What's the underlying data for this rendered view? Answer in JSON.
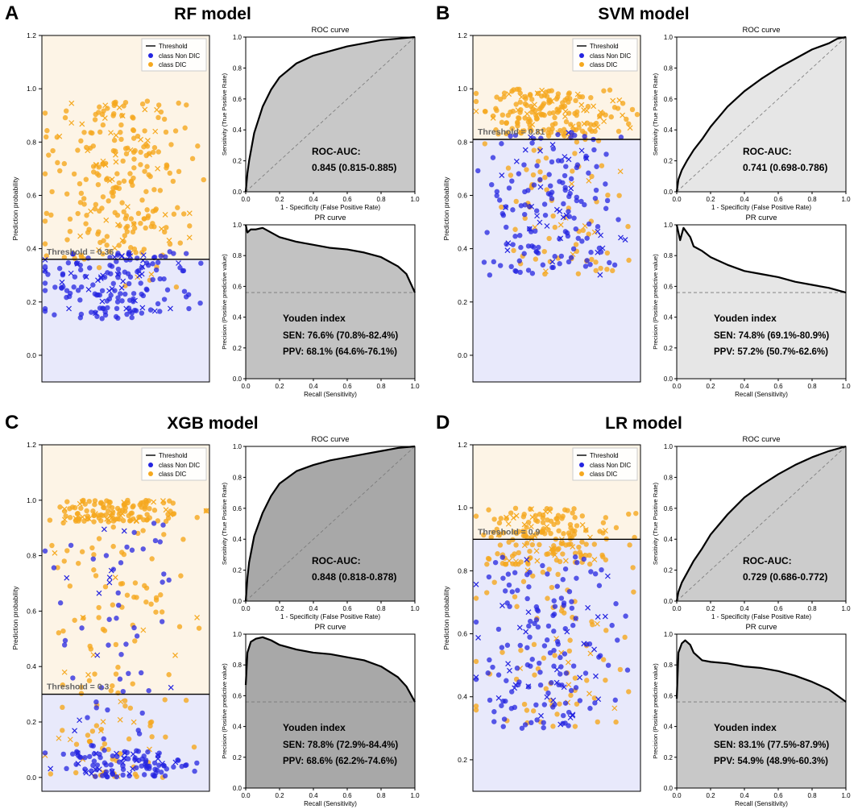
{
  "colors": {
    "dic": "#f5a81e",
    "non_dic": "#2424e0",
    "above_bg": "#fdf4e6",
    "below_bg": "#e8e9fb",
    "threshold_line": "#000000",
    "threshold_label": "#666666"
  },
  "chart_data": [
    {
      "type": "scatter",
      "panel": "A",
      "title": "RF model",
      "scatter": {
        "ylabel": "Prediction probability",
        "ylim": [
          -0.1,
          1.2
        ],
        "yticks": [
          "0.0",
          "0.2",
          "0.4",
          "0.6",
          "0.8",
          "1.0",
          "1.2"
        ],
        "threshold": 0.36,
        "threshold_label": "Threshold = 0.36",
        "legend": [
          "Threshold",
          "class Non DIC",
          "class DIC"
        ],
        "legend_position": "top-right",
        "dic_range": [
          0.25,
          0.96
        ],
        "nondic_range": [
          0.12,
          0.62
        ]
      },
      "roc": {
        "title": "ROC curve",
        "xlabel": "1 - Specificity (False Positive Rate)",
        "ylabel": "Sensitivity (True Positive Rate)",
        "ticks": [
          "0.0",
          "0.2",
          "0.4",
          "0.6",
          "0.8",
          "1.0"
        ],
        "auc_label": "ROC-AUC:",
        "auc_text": "0.845 (0.815-0.885)",
        "auc": 0.845,
        "fill": "#c8c8c8",
        "curve": [
          [
            0,
            0
          ],
          [
            0.01,
            0.12
          ],
          [
            0.02,
            0.2
          ],
          [
            0.05,
            0.38
          ],
          [
            0.1,
            0.55
          ],
          [
            0.15,
            0.66
          ],
          [
            0.2,
            0.74
          ],
          [
            0.3,
            0.83
          ],
          [
            0.4,
            0.88
          ],
          [
            0.5,
            0.91
          ],
          [
            0.6,
            0.94
          ],
          [
            0.7,
            0.96
          ],
          [
            0.8,
            0.98
          ],
          [
            0.9,
            0.99
          ],
          [
            1,
            1
          ]
        ]
      },
      "pr": {
        "title": "PR curve",
        "xlabel": "Recall (Sensitivity)",
        "ylabel": "Precision (Positive predictive value)",
        "ticks": [
          "0.0",
          "0.2",
          "0.4",
          "0.6",
          "0.8",
          "1.0"
        ],
        "baseline": 0.56,
        "youden_title": "Youden index",
        "sen_text": "SEN: 76.6% (70.8%-82.4%)",
        "ppv_text": "PPV: 68.1% (64.6%-76.1%)",
        "fill": "#c2c2c2",
        "curve": [
          [
            0,
            1.0
          ],
          [
            0.01,
            0.95
          ],
          [
            0.03,
            0.97
          ],
          [
            0.06,
            0.97
          ],
          [
            0.1,
            0.98
          ],
          [
            0.15,
            0.95
          ],
          [
            0.2,
            0.92
          ],
          [
            0.3,
            0.89
          ],
          [
            0.4,
            0.87
          ],
          [
            0.5,
            0.85
          ],
          [
            0.6,
            0.84
          ],
          [
            0.7,
            0.82
          ],
          [
            0.8,
            0.79
          ],
          [
            0.9,
            0.73
          ],
          [
            0.95,
            0.68
          ],
          [
            1,
            0.56
          ]
        ]
      }
    },
    {
      "type": "scatter",
      "panel": "B",
      "title": "SVM model",
      "scatter": {
        "ylabel": "Prediction probability",
        "ylim": [
          -0.1,
          1.2
        ],
        "yticks": [
          "0.0",
          "0.2",
          "0.4",
          "0.6",
          "0.8",
          "1.0",
          "1.2"
        ],
        "threshold": 0.81,
        "threshold_label": "Threshold = 0.81",
        "legend": [
          "Threshold",
          "class Non DIC",
          "class DIC"
        ],
        "legend_position": "top-right",
        "dic_range": [
          0.3,
          1.0
        ],
        "nondic_range": [
          0.15,
          0.98
        ]
      },
      "roc": {
        "title": "ROC curve",
        "xlabel": "1 - Specificity (False Positive Rate)",
        "ylabel": "Sensitivity (True Positive Rate)",
        "ticks": [
          "0.0",
          "0.2",
          "0.4",
          "0.6",
          "0.8",
          "1.0"
        ],
        "auc_label": "ROC-AUC:",
        "auc_text": "0.741 (0.698-0.786)",
        "auc": 0.741,
        "fill": "#e6e6e6",
        "curve": [
          [
            0,
            0
          ],
          [
            0.01,
            0.08
          ],
          [
            0.03,
            0.14
          ],
          [
            0.06,
            0.2
          ],
          [
            0.1,
            0.27
          ],
          [
            0.15,
            0.34
          ],
          [
            0.2,
            0.42
          ],
          [
            0.3,
            0.55
          ],
          [
            0.4,
            0.65
          ],
          [
            0.5,
            0.73
          ],
          [
            0.6,
            0.8
          ],
          [
            0.7,
            0.86
          ],
          [
            0.8,
            0.92
          ],
          [
            0.9,
            0.96
          ],
          [
            0.95,
            0.99
          ],
          [
            1,
            1
          ]
        ]
      },
      "pr": {
        "title": "PR curve",
        "xlabel": "Recall (Sensitivity)",
        "ylabel": "Precision (Positive predictive value)",
        "ticks": [
          "0.0",
          "0.2",
          "0.4",
          "0.6",
          "0.8",
          "1.0"
        ],
        "baseline": 0.56,
        "youden_title": "Youden index",
        "sen_text": "SEN: 74.8% (69.1%-80.9%)",
        "ppv_text": "PPV: 57.2% (50.7%-62.6%)",
        "fill": "#e6e6e6",
        "curve": [
          [
            0,
            1.0
          ],
          [
            0.02,
            0.9
          ],
          [
            0.04,
            0.98
          ],
          [
            0.06,
            0.95
          ],
          [
            0.08,
            0.92
          ],
          [
            0.1,
            0.86
          ],
          [
            0.15,
            0.83
          ],
          [
            0.2,
            0.79
          ],
          [
            0.3,
            0.74
          ],
          [
            0.4,
            0.7
          ],
          [
            0.5,
            0.68
          ],
          [
            0.6,
            0.66
          ],
          [
            0.7,
            0.63
          ],
          [
            0.8,
            0.61
          ],
          [
            0.9,
            0.59
          ],
          [
            1,
            0.56
          ]
        ]
      }
    },
    {
      "type": "scatter",
      "panel": "C",
      "title": "XGB model",
      "scatter": {
        "ylabel": "Prediction probability",
        "ylim": [
          -0.05,
          1.2
        ],
        "yticks": [
          "0.0",
          "0.2",
          "0.4",
          "0.6",
          "0.8",
          "1.0",
          "1.2"
        ],
        "threshold": 0.3,
        "threshold_label": "Threshold = 0.3",
        "legend": [
          "Threshold",
          "class Non DIC",
          "class DIC"
        ],
        "legend_position": "top-right",
        "dic_range": [
          0.0,
          1.0
        ],
        "nondic_range": [
          0.0,
          1.0
        ]
      },
      "roc": {
        "title": "ROC curve",
        "xlabel": "1 - Specificity (False Positive Rate)",
        "ylabel": "Sensitivity (True Positive Rate)",
        "ticks": [
          "0.0",
          "0.2",
          "0.4",
          "0.6",
          "0.8",
          "1.0"
        ],
        "auc_label": "ROC-AUC:",
        "auc_text": "0.848 (0.818-0.878)",
        "auc": 0.848,
        "fill": "#a8a8a8",
        "curve": [
          [
            0,
            0
          ],
          [
            0.01,
            0.15
          ],
          [
            0.02,
            0.25
          ],
          [
            0.05,
            0.42
          ],
          [
            0.1,
            0.57
          ],
          [
            0.15,
            0.68
          ],
          [
            0.2,
            0.76
          ],
          [
            0.3,
            0.84
          ],
          [
            0.4,
            0.88
          ],
          [
            0.5,
            0.91
          ],
          [
            0.6,
            0.93
          ],
          [
            0.7,
            0.95
          ],
          [
            0.8,
            0.97
          ],
          [
            0.9,
            0.99
          ],
          [
            1,
            1
          ]
        ]
      },
      "pr": {
        "title": "PR curve",
        "xlabel": "Recall (Sensitivity)",
        "ylabel": "Precision (Positive predictive value)",
        "ticks": [
          "0.0",
          "0.2",
          "0.4",
          "0.6",
          "0.8",
          "1.0"
        ],
        "baseline": 0.56,
        "youden_title": "Youden index",
        "sen_text": "SEN: 78.8% (72.9%-84.4%)",
        "ppv_text": "PPV: 68.6% (62.2%-74.6%)",
        "fill": "#a8a8a8",
        "curve": [
          [
            0,
            0.67
          ],
          [
            0.01,
            0.88
          ],
          [
            0.03,
            0.95
          ],
          [
            0.06,
            0.97
          ],
          [
            0.1,
            0.98
          ],
          [
            0.15,
            0.96
          ],
          [
            0.2,
            0.93
          ],
          [
            0.3,
            0.9
          ],
          [
            0.4,
            0.88
          ],
          [
            0.5,
            0.87
          ],
          [
            0.6,
            0.85
          ],
          [
            0.7,
            0.83
          ],
          [
            0.8,
            0.79
          ],
          [
            0.9,
            0.72
          ],
          [
            0.95,
            0.66
          ],
          [
            1,
            0.56
          ]
        ]
      }
    },
    {
      "type": "scatter",
      "panel": "D",
      "title": "LR model",
      "scatter": {
        "ylabel": "Prediction probability",
        "ylim": [
          0.1,
          1.2
        ],
        "yticks": [
          "0.2",
          "0.4",
          "0.6",
          "0.8",
          "1.0",
          "1.2"
        ],
        "threshold": 0.9,
        "threshold_label": "Threshold = 0.9",
        "legend": [
          "Threshold",
          "class Non DIC",
          "class DIC"
        ],
        "legend_position": "top-right",
        "dic_range": [
          0.3,
          1.0
        ],
        "nondic_range": [
          0.2,
          0.98
        ]
      },
      "roc": {
        "title": "ROC curve",
        "xlabel": "1 - Specificity (False Positive Rate)",
        "ylabel": "Sensitivity (True Positive Rate)",
        "ticks": [
          "0.0",
          "0.2",
          "0.4",
          "0.6",
          "0.8",
          "1.0"
        ],
        "auc_label": "ROC-AUC:",
        "auc_text": "0.729 (0.686-0.772)",
        "auc": 0.729,
        "fill": "#cccccc",
        "curve": [
          [
            0,
            0
          ],
          [
            0.01,
            0.06
          ],
          [
            0.03,
            0.12
          ],
          [
            0.06,
            0.18
          ],
          [
            0.1,
            0.26
          ],
          [
            0.15,
            0.34
          ],
          [
            0.2,
            0.43
          ],
          [
            0.3,
            0.56
          ],
          [
            0.4,
            0.67
          ],
          [
            0.5,
            0.75
          ],
          [
            0.6,
            0.82
          ],
          [
            0.7,
            0.88
          ],
          [
            0.8,
            0.93
          ],
          [
            0.9,
            0.97
          ],
          [
            1,
            1
          ]
        ]
      },
      "pr": {
        "title": "PR curve",
        "xlabel": "Recall (Sensitivity)",
        "ylabel": "Precision (Positive predictive value)",
        "ticks": [
          "0.0",
          "0.2",
          "0.4",
          "0.6",
          "0.8",
          "1.0"
        ],
        "baseline": 0.56,
        "youden_title": "Youden index",
        "sen_text": "SEN: 83.1% (77.5%-87.9%)",
        "ppv_text": "PPV: 54.9% (48.9%-60.3%)",
        "fill": "#c8c8c8",
        "curve": [
          [
            0,
            0.58
          ],
          [
            0.01,
            0.88
          ],
          [
            0.03,
            0.94
          ],
          [
            0.05,
            0.96
          ],
          [
            0.08,
            0.93
          ],
          [
            0.1,
            0.88
          ],
          [
            0.15,
            0.83
          ],
          [
            0.2,
            0.82
          ],
          [
            0.3,
            0.81
          ],
          [
            0.4,
            0.79
          ],
          [
            0.5,
            0.78
          ],
          [
            0.6,
            0.76
          ],
          [
            0.7,
            0.73
          ],
          [
            0.8,
            0.69
          ],
          [
            0.9,
            0.64
          ],
          [
            0.95,
            0.6
          ],
          [
            1,
            0.56
          ]
        ]
      }
    }
  ]
}
